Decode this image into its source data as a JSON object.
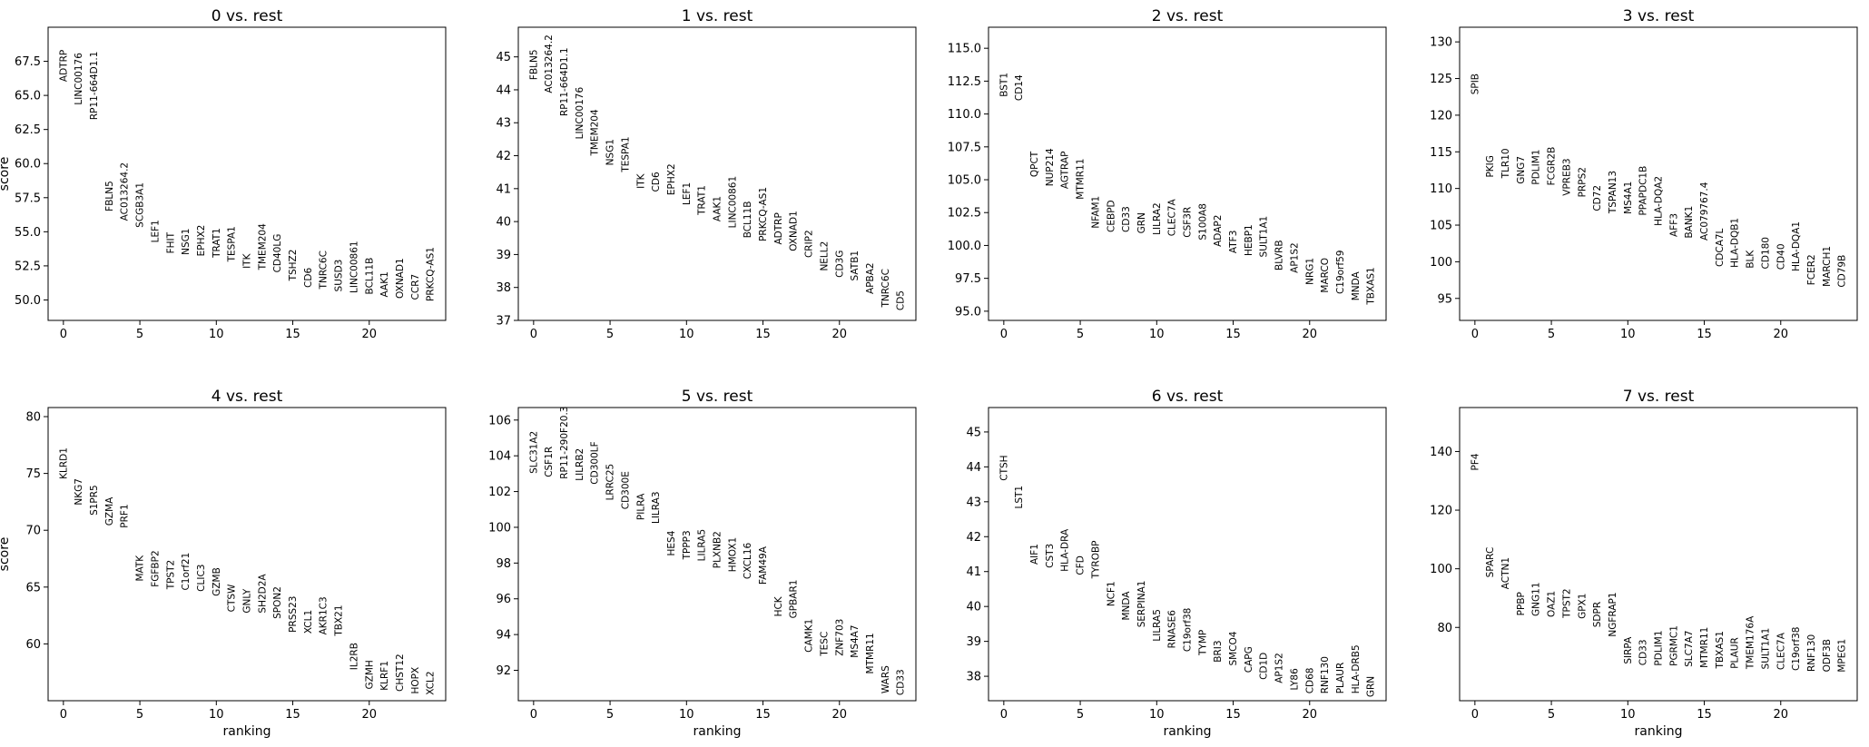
{
  "chart_data": [
    {
      "type": "scatter",
      "title": "0 vs. rest",
      "ylabel": "score",
      "xlabel": "",
      "xlim": [
        -1,
        25
      ],
      "ylim": [
        48.5,
        70.0
      ],
      "xticks": [
        0,
        5,
        10,
        15,
        20
      ],
      "yticks": [
        50.0,
        52.5,
        55.0,
        57.5,
        60.0,
        62.5,
        65.0,
        67.5
      ],
      "ytick_labels": [
        "50.0",
        "52.5",
        "55.0",
        "57.5",
        "60.0",
        "62.5",
        "65.0",
        "67.5"
      ],
      "genes": [
        "ADTRP",
        "LINC00176",
        "RP11-664D1.1",
        "FBLN5",
        "AC013264.2",
        "SCGB3A1",
        "LEF1",
        "FHIT",
        "NSG1",
        "EPHX2",
        "TRAT1",
        "TESPA1",
        "ITK",
        "TMEM204",
        "CD40LG",
        "TSHZ2",
        "CD6",
        "TNRC6C",
        "SUSD3",
        "LINC00861",
        "BCL11B",
        "AAK1",
        "OXNAD1",
        "CCR7",
        "PRKCQ-AS1"
      ],
      "scores": [
        66.0,
        64.3,
        63.2,
        56.5,
        55.8,
        55.3,
        54.2,
        53.4,
        53.3,
        53.2,
        53.1,
        52.8,
        52.3,
        52.2,
        52.0,
        51.4,
        50.9,
        50.8,
        50.6,
        50.5,
        50.4,
        50.2,
        50.1,
        50.0,
        49.9
      ]
    },
    {
      "type": "scatter",
      "title": "1 vs. rest",
      "ylabel": "",
      "xlabel": "",
      "xlim": [
        -1,
        25
      ],
      "ylim": [
        37.0,
        45.9
      ],
      "xticks": [
        0,
        5,
        10,
        15,
        20
      ],
      "yticks": [
        37,
        38,
        39,
        40,
        41,
        42,
        43,
        44,
        45
      ],
      "ytick_labels": [
        "37",
        "38",
        "39",
        "40",
        "41",
        "42",
        "43",
        "44",
        "45"
      ],
      "genes": [
        "FBLN5",
        "AC013264.2",
        "RP11-664D1.1",
        "LINC00176",
        "TMEM204",
        "NSG1",
        "TESPA1",
        "ITK",
        "CD6",
        "EPHX2",
        "LEF1",
        "TRAT1",
        "AAK1",
        "LINC00861",
        "BCL11B",
        "PRKCQ-AS1",
        "ADTRP",
        "OXNAD1",
        "CRIP2",
        "NELL2",
        "CD3G",
        "SATB1",
        "APBA2",
        "TNRC6C",
        "CD5"
      ],
      "scores": [
        44.3,
        43.9,
        43.2,
        42.5,
        42.0,
        41.7,
        41.5,
        41.0,
        40.9,
        40.8,
        40.5,
        40.2,
        40.0,
        39.8,
        39.5,
        39.4,
        39.3,
        39.1,
        38.9,
        38.5,
        38.3,
        38.2,
        37.8,
        37.4,
        37.3
      ]
    },
    {
      "type": "scatter",
      "title": "2 vs. rest",
      "ylabel": "",
      "xlabel": "",
      "xlim": [
        -1,
        25
      ],
      "ylim": [
        94.3,
        116.6
      ],
      "xticks": [
        0,
        5,
        10,
        15,
        20
      ],
      "yticks": [
        95.0,
        97.5,
        100.0,
        102.5,
        105.0,
        107.5,
        110.0,
        112.5,
        115.0
      ],
      "ytick_labels": [
        "95.0",
        "97.5",
        "100.0",
        "102.5",
        "105.0",
        "107.5",
        "110.0",
        "112.5",
        "115.0"
      ],
      "genes": [
        "BST1",
        "CD14",
        "QPCT",
        "NUP214",
        "AGTRAP",
        "MTMR11",
        "NFAM1",
        "CEBPD",
        "CD33",
        "GRN",
        "LILRA2",
        "CLEC7A",
        "CSF3R",
        "S100A8",
        "ADAP2",
        "ATF3",
        "HEBP1",
        "SULT1A1",
        "BLVRB",
        "AP1S2",
        "NRG1",
        "MARCO",
        "C19orf59",
        "MNDA",
        "TBXAS1"
      ],
      "scores": [
        111.3,
        111.0,
        105.2,
        104.5,
        104.3,
        103.5,
        101.3,
        101.0,
        101.0,
        100.9,
        100.8,
        100.7,
        100.6,
        100.4,
        99.9,
        99.4,
        99.2,
        99.1,
        98.1,
        97.9,
        97.0,
        96.4,
        96.3,
        95.8,
        95.5
      ]
    },
    {
      "type": "scatter",
      "title": "3 vs. rest",
      "ylabel": "",
      "xlabel": "",
      "xlim": [
        -1,
        25
      ],
      "ylim": [
        92.0,
        132.0
      ],
      "xticks": [
        0,
        5,
        10,
        15,
        20
      ],
      "yticks": [
        95,
        100,
        105,
        110,
        115,
        120,
        125,
        130
      ],
      "ytick_labels": [
        "95",
        "100",
        "105",
        "110",
        "115",
        "120",
        "125",
        "130"
      ],
      "genes": [
        "SPIB",
        "PKIG",
        "TLR10",
        "GNG7",
        "PDLIM1",
        "FCGR2B",
        "VPREB3",
        "PRPS2",
        "CD72",
        "TSPAN13",
        "MS4A1",
        "PPAPDC1B",
        "HLA-DQA2",
        "AFF3",
        "BANK1",
        "AC079767.4",
        "CDCA7L",
        "HLA-DQB1",
        "BLK",
        "CD180",
        "CD40",
        "HLA-DQA1",
        "FCER2",
        "MARCH1",
        "CD79B"
      ],
      "scores": [
        122.8,
        111.5,
        111.4,
        110.6,
        110.5,
        110.4,
        109.0,
        108.8,
        106.9,
        106.6,
        106.5,
        106.3,
        104.9,
        103.4,
        103.2,
        102.9,
        99.3,
        99.2,
        99.1,
        99.0,
        98.9,
        98.7,
        96.8,
        96.6,
        96.5
      ]
    },
    {
      "type": "scatter",
      "title": "4 vs. rest",
      "ylabel": "score",
      "xlabel": "ranking",
      "xlim": [
        -1,
        25
      ],
      "ylim": [
        55.0,
        80.8
      ],
      "xticks": [
        0,
        5,
        10,
        15,
        20
      ],
      "yticks": [
        60,
        65,
        70,
        75,
        80
      ],
      "ytick_labels": [
        "60",
        "65",
        "70",
        "75",
        "80"
      ],
      "genes": [
        "KLRD1",
        "NKG7",
        "S1PR5",
        "GZMA",
        "PRF1",
        "MATK",
        "FGFBP2",
        "TPST2",
        "C1orf21",
        "CLIC3",
        "GZMB",
        "CTSW",
        "GNLY",
        "SH2D2A",
        "SPON2",
        "PRSS23",
        "XCL1",
        "AKR1C3",
        "TBX21",
        "IL2RB",
        "GZMH",
        "KLRF1",
        "CHST12",
        "HOPX",
        "XCL2"
      ],
      "scores": [
        74.5,
        72.2,
        71.3,
        70.4,
        70.2,
        65.5,
        65.0,
        64.8,
        64.7,
        64.6,
        64.2,
        62.8,
        62.7,
        62.7,
        62.2,
        61.0,
        60.9,
        60.8,
        60.7,
        57.7,
        56.0,
        55.9,
        55.8,
        55.6,
        55.5
      ]
    },
    {
      "type": "scatter",
      "title": "5 vs. rest",
      "ylabel": "",
      "xlabel": "ranking",
      "xlim": [
        -1,
        25
      ],
      "ylim": [
        90.3,
        106.7
      ],
      "xticks": [
        0,
        5,
        10,
        15,
        20
      ],
      "yticks": [
        92,
        94,
        96,
        98,
        100,
        102,
        104,
        106
      ],
      "ytick_labels": [
        "92",
        "94",
        "96",
        "98",
        "100",
        "102",
        "104",
        "106"
      ],
      "genes": [
        "SLC31A2",
        "CSF1R",
        "RP11-290F20.3",
        "LILRB2",
        "CD300LF",
        "LRRC25",
        "CD300E",
        "PILRA",
        "LILRA3",
        "HES4",
        "TPPP3",
        "LILRA5",
        "PLXNB2",
        "HMOX1",
        "CXCL16",
        "FAM49A",
        "HCK",
        "GPBAR1",
        "CAMK1",
        "TESC",
        "ZNF703",
        "MS4A7",
        "MTMR11",
        "WARS",
        "CD33"
      ],
      "scores": [
        103.0,
        102.8,
        102.7,
        102.6,
        102.4,
        101.5,
        101.0,
        100.4,
        100.2,
        98.4,
        98.2,
        98.1,
        97.7,
        97.5,
        97.1,
        96.8,
        95.0,
        94.9,
        93.0,
        92.8,
        92.8,
        92.7,
        91.8,
        90.7,
        90.6
      ]
    },
    {
      "type": "scatter",
      "title": "6 vs. rest",
      "ylabel": "",
      "xlabel": "ranking",
      "xlim": [
        -1,
        25
      ],
      "ylim": [
        37.3,
        45.7
      ],
      "xticks": [
        0,
        5,
        10,
        15,
        20
      ],
      "yticks": [
        38,
        39,
        40,
        41,
        42,
        43,
        44,
        45
      ],
      "ytick_labels": [
        "38",
        "39",
        "40",
        "41",
        "42",
        "43",
        "44",
        "45"
      ],
      "genes": [
        "CTSH",
        "LST1",
        "AIF1",
        "CST3",
        "HLA-DRA",
        "CFD",
        "TYROBP",
        "NCF1",
        "MNDA",
        "SERPINA1",
        "LILRA5",
        "RNASE6",
        "C19orf38",
        "TYMP",
        "BRI3",
        "SMCO4",
        "CAPG",
        "CD1D",
        "AP1S2",
        "LY86",
        "CD68",
        "RNF130",
        "PLAUR",
        "HLA-DRB5",
        "GRN"
      ],
      "scores": [
        43.6,
        42.8,
        41.2,
        41.1,
        41.0,
        40.9,
        40.8,
        40.0,
        39.6,
        39.4,
        39.0,
        38.8,
        38.7,
        38.6,
        38.4,
        38.3,
        38.1,
        37.9,
        37.8,
        37.6,
        37.5,
        37.5,
        37.5,
        37.5,
        37.4
      ]
    },
    {
      "type": "scatter",
      "title": "7 vs. rest",
      "ylabel": "",
      "xlabel": "ranking",
      "xlim": [
        -1,
        25
      ],
      "ylim": [
        55.0,
        155.0
      ],
      "xticks": [
        0,
        5,
        10,
        15,
        20
      ],
      "yticks": [
        80,
        100,
        120,
        140
      ],
      "ytick_labels": [
        "80",
        "100",
        "120",
        "140"
      ],
      "genes": [
        "PF4",
        "SPARC",
        "ACTN1",
        "PPBP",
        "GNG11",
        "OAZ1",
        "TPST2",
        "GPX1",
        "SDPR",
        "NGFRAP1",
        "SIRPA",
        "CD33",
        "PDLIM1",
        "PGRMC1",
        "SLC7A7",
        "MTMR11",
        "TBXAS1",
        "PLAUR",
        "TMEM176A",
        "SULT1A1",
        "CLEC7A",
        "C19orf38",
        "RNF130",
        "ODF3B",
        "MPEG1"
      ],
      "scores": [
        133.5,
        97.0,
        93.0,
        84.0,
        83.8,
        83.5,
        83.2,
        82.9,
        80.0,
        76.8,
        67.5,
        67.0,
        66.9,
        66.8,
        66.5,
        66.2,
        66.0,
        65.9,
        65.8,
        65.7,
        65.5,
        65.2,
        64.9,
        64.8,
        64.7
      ]
    }
  ]
}
